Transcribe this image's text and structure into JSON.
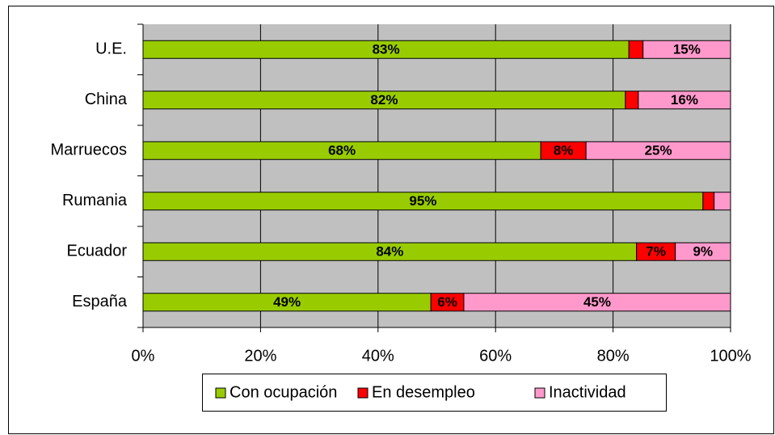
{
  "chart_data": {
    "type": "stacked_bar_horizontal",
    "categories": [
      "U.E.",
      "China",
      "Marruecos",
      "Rumania",
      "Ecuador",
      "España"
    ],
    "series": [
      {
        "name": "Con ocupación",
        "color": "#99cc00",
        "values": [
          82.7,
          82.1,
          67.7,
          95.3,
          84.0,
          49.0
        ],
        "value_labels": [
          "83%",
          "82%",
          "68%",
          "95%",
          "84%",
          "49%"
        ]
      },
      {
        "name": "En desempleo",
        "color": "#ff0000",
        "values": [
          2.4,
          2.2,
          7.7,
          1.9,
          6.6,
          5.6
        ],
        "value_labels": [
          null,
          null,
          "8%",
          null,
          "7%",
          "6%"
        ]
      },
      {
        "name": "Inactividad",
        "color": "#ff99cc",
        "values": [
          14.9,
          15.7,
          24.6,
          2.8,
          9.4,
          45.4
        ],
        "value_labels": [
          "15%",
          "16%",
          "25%",
          null,
          "9%",
          "45%"
        ]
      }
    ],
    "xlim": [
      0,
      100
    ],
    "xticks": [
      {
        "value": 0,
        "label": "0%"
      },
      {
        "value": 20,
        "label": "20%"
      },
      {
        "value": 40,
        "label": "40%"
      },
      {
        "value": 60,
        "label": "60%"
      },
      {
        "value": 80,
        "label": "80%"
      },
      {
        "value": 100,
        "label": "100%"
      }
    ],
    "grid": true,
    "legend": "bottom"
  }
}
